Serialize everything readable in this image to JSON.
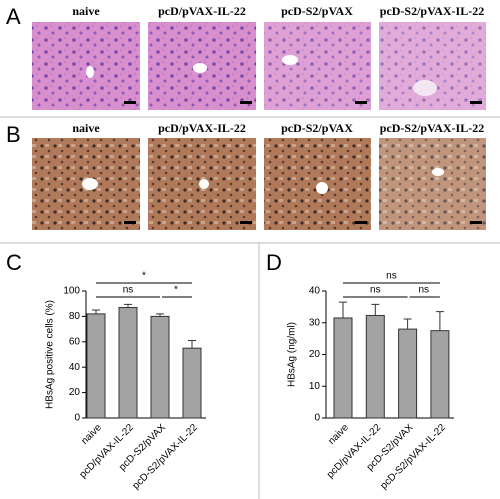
{
  "panel_labels": [
    "A",
    "B",
    "C",
    "D"
  ],
  "image_rows": [
    {
      "columns": [
        "naive",
        "pcD/pVAX-IL-22",
        "pcD-S2/pVAX",
        "pcD-S2/pVAX-IL-22"
      ]
    },
    {
      "columns": [
        "naive",
        "pcD/pVAX-IL-22",
        "pcD-S2/pVAX",
        "pcD-S2/pVAX-IL-22"
      ]
    }
  ],
  "chart_data": [
    {
      "type": "bar",
      "y_label": "HBsAg positive cells (%)",
      "categories": [
        "naive",
        "pcD/pVAX-IL-22",
        "pcD-S2/pVAX",
        "pcD-S2/pVAX-IL-22"
      ],
      "values": [
        82,
        87,
        80,
        55
      ],
      "errors": [
        3,
        2.5,
        2,
        6
      ],
      "color": "#a3a3a3",
      "ylim": [
        0,
        100
      ],
      "yticks": [
        0,
        20,
        40,
        60,
        80,
        100
      ],
      "comparisons": [
        {
          "groups": [
            "naive",
            "pcD-S2/pVAX-IL-22"
          ],
          "label": "*"
        },
        {
          "groups": [
            "naive",
            "pcD-S2/pVAX"
          ],
          "label": "ns"
        },
        {
          "groups": [
            "pcD-S2/pVAX",
            "pcD-S2/pVAX-IL-22"
          ],
          "label": "*"
        }
      ]
    },
    {
      "type": "bar",
      "y_label": "HBsAg (ng/ml)",
      "categories": [
        "naive",
        "pcD/pVAX-IL-22",
        "pcD-S2/pVAX",
        "pcD-S2/pVAX-IL-22"
      ],
      "values": [
        31.5,
        32.3,
        28,
        27.5
      ],
      "errors": [
        5,
        3.5,
        3.2,
        6
      ],
      "color": "#a3a3a3",
      "ylim": [
        0,
        40
      ],
      "yticks": [
        0,
        10,
        20,
        30,
        40
      ],
      "comparisons": [
        {
          "groups": [
            "naive",
            "pcD-S2/pVAX-IL-22"
          ],
          "label": "ns"
        },
        {
          "groups": [
            "naive",
            "pcD-S2/pVAX"
          ],
          "label": "ns"
        },
        {
          "groups": [
            "pcD-S2/pVAX",
            "pcD-S2/pVAX-IL-22"
          ],
          "label": "ns"
        }
      ]
    }
  ]
}
